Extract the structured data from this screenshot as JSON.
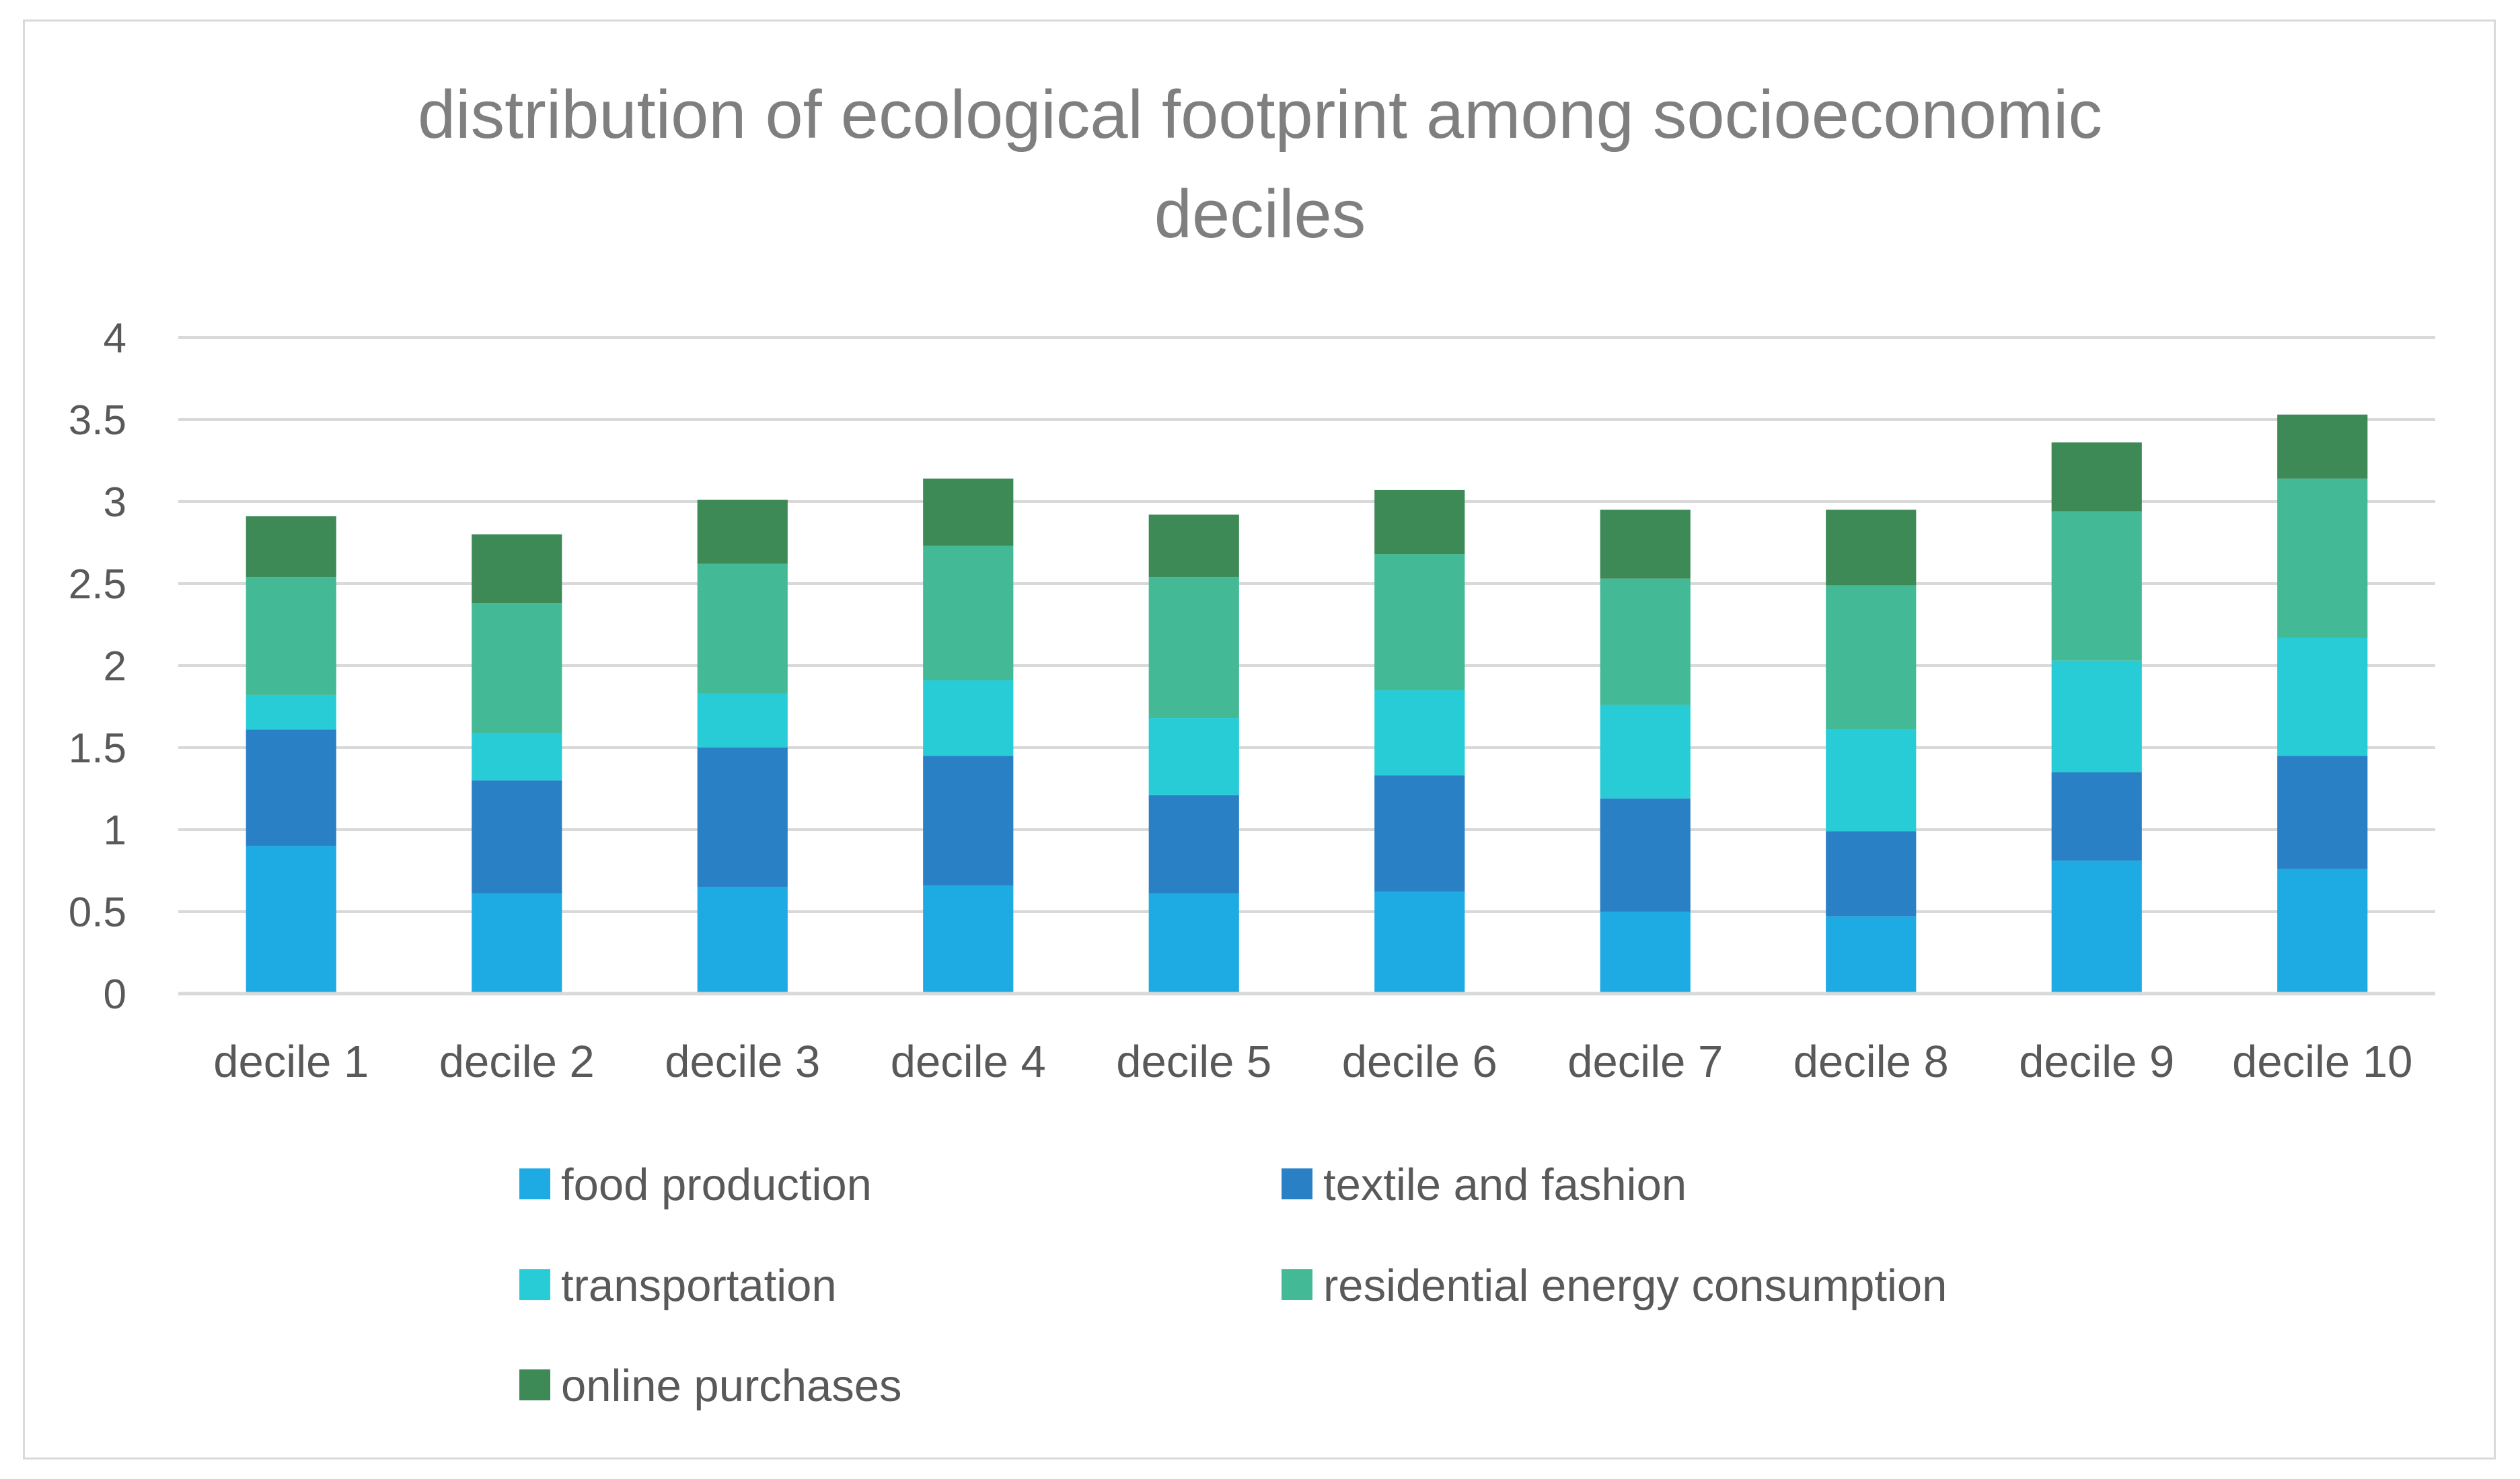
{
  "chart_data": {
    "type": "bar",
    "stacked": true,
    "title": "distribution of ecological footprint among socioeconomic deciles",
    "title_lines": [
      "distribution of ecological footprint among socioeconomic",
      "deciles"
    ],
    "xlabel": "",
    "ylabel": "",
    "ylim": [
      0,
      4
    ],
    "yticks": [
      0,
      0.5,
      1,
      1.5,
      2,
      2.5,
      3,
      3.5,
      4
    ],
    "ytick_labels": [
      "0",
      "0.5",
      "1",
      "1.5",
      "2",
      "2.5",
      "3",
      "3.5",
      "4"
    ],
    "grid": true,
    "legend_position": "bottom",
    "categories": [
      "decile 1",
      "decile 2",
      "decile 3",
      "decile 4",
      "decile 5",
      "decile 6",
      "decile 7",
      "decile 8",
      "decile 9",
      "decile 10"
    ],
    "series": [
      {
        "name": "food production",
        "color": "#1eabe3",
        "values": [
          0.9,
          0.61,
          0.65,
          0.66,
          0.61,
          0.62,
          0.5,
          0.47,
          0.81,
          0.76
        ]
      },
      {
        "name": "textile and fashion",
        "color": "#2a80c5",
        "values": [
          0.71,
          0.69,
          0.85,
          0.79,
          0.6,
          0.71,
          0.69,
          0.52,
          0.54,
          0.69
        ]
      },
      {
        "name": "transportation",
        "color": "#27ccd6",
        "values": [
          0.21,
          0.29,
          0.33,
          0.46,
          0.47,
          0.52,
          0.57,
          0.62,
          0.68,
          0.72
        ]
      },
      {
        "name": "residential energy consumption",
        "color": "#43b996",
        "values": [
          0.72,
          0.79,
          0.79,
          0.82,
          0.86,
          0.83,
          0.77,
          0.88,
          0.91,
          0.97
        ]
      },
      {
        "name": "online purchases",
        "color": "#3d8a57",
        "values": [
          0.37,
          0.42,
          0.39,
          0.41,
          0.38,
          0.39,
          0.42,
          0.46,
          0.42,
          0.39
        ]
      }
    ]
  }
}
